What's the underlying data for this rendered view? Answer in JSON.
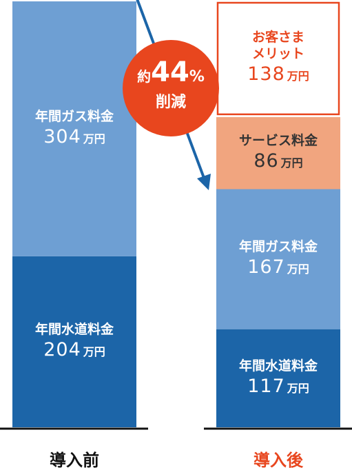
{
  "chart_data": {
    "type": "stacked_bar",
    "categories": [
      "導入前",
      "導入後"
    ],
    "category_colors": [
      "#111111",
      "#e8461e"
    ],
    "unit": "万円",
    "series": [
      {
        "name": "年間水道料金",
        "color": "#1c65a8",
        "text_color": "#ffffff",
        "values": [
          204,
          117
        ]
      },
      {
        "name": "年間ガス料金",
        "color": "#6e9fd3",
        "text_color": "#ffffff",
        "values": [
          304,
          167
        ]
      },
      {
        "name": "サービス料金",
        "color": "#f1a57f",
        "text_color": "#333333",
        "values": [
          null,
          86
        ]
      },
      {
        "name": "お客さまメリット",
        "color": "#e8461e",
        "text_color": "#e8461e",
        "style": "outline",
        "values": [
          null,
          138
        ]
      }
    ],
    "ylim": [
      0,
      508
    ],
    "annotation": {
      "prefix": "約",
      "value": 44,
      "suffix": "%",
      "text": "削減",
      "color": "#e8461e",
      "arrow_color": "#1c65a8"
    }
  }
}
